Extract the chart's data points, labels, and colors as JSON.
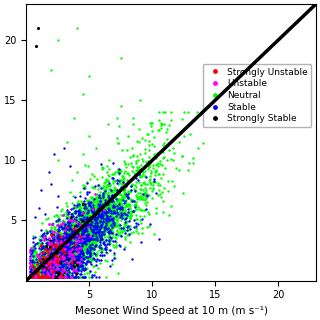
{
  "xlabel": "Mesonet Wind Speed at 10 m (m s⁻¹)",
  "xlim": [
    0,
    23
  ],
  "ylim": [
    0,
    23
  ],
  "line_color": "black",
  "line_width": 2.5,
  "categories": [
    "Strongly Unstable",
    "Unstable",
    "Neutral",
    "Stable",
    "Strongly Stable"
  ],
  "colors": [
    "red",
    "magenta",
    "lime",
    "blue",
    "black"
  ],
  "marker_size": 3,
  "seed": 42,
  "legend_fontsize": 6.5,
  "tick_fontsize": 7,
  "xlabel_fontsize": 7.5,
  "xticks": [
    5,
    10,
    15,
    20
  ],
  "yticks": [
    5,
    10,
    15,
    20
  ]
}
